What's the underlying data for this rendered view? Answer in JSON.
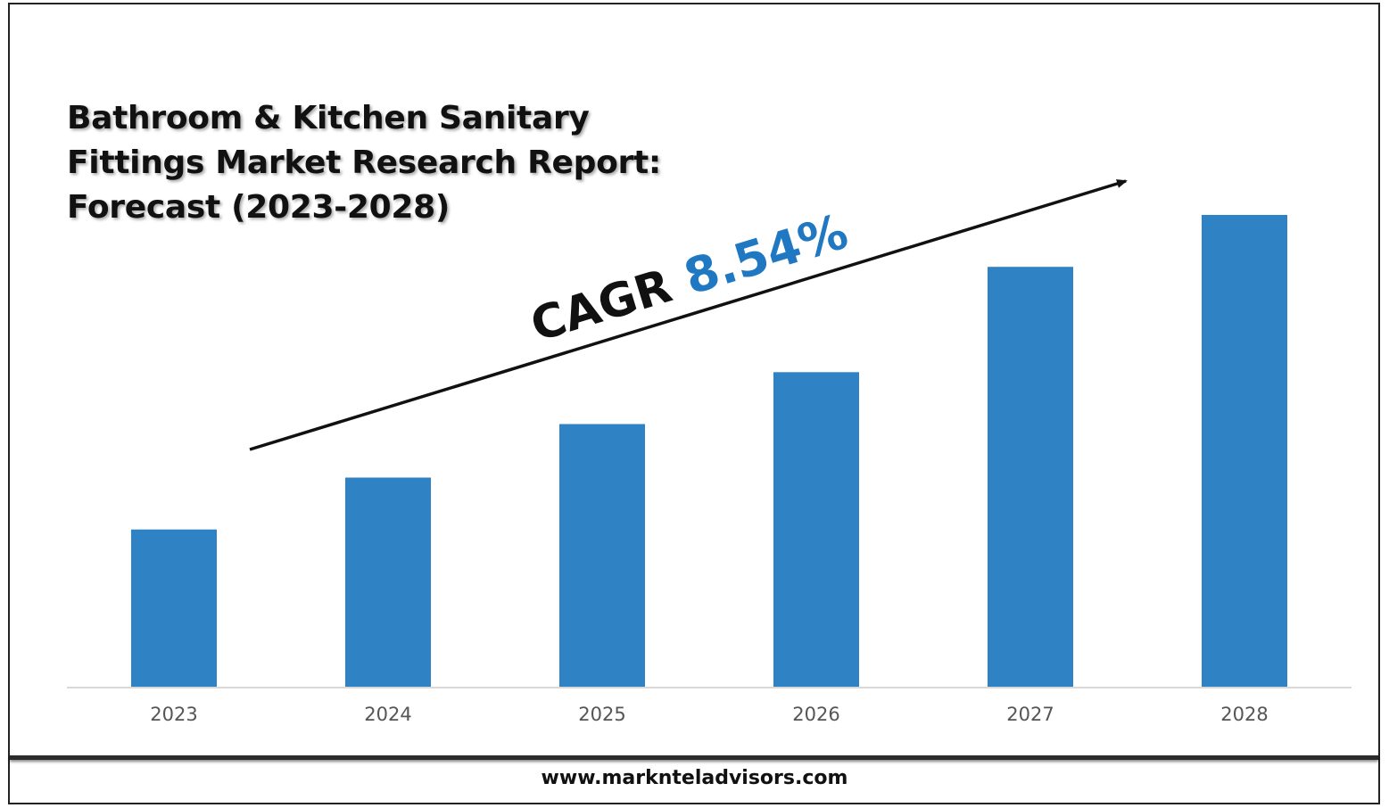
{
  "title_lines": [
    "Bathroom & Kitchen Sanitary",
    "Fittings Market Research Report:",
    "Forecast (2023-2028)"
  ],
  "cagr": {
    "label": "CAGR",
    "value": "8.54%",
    "value_color": "#1f78c1"
  },
  "footer": {
    "url": "www.marknteladvisors.com"
  },
  "colors": {
    "bar": "#2f83c4",
    "axis": "#d9d9d9",
    "text": "#111111"
  },
  "chart_data": {
    "type": "bar",
    "title": "Bathroom & Kitchen Sanitary Fittings Market Research Report: Forecast (2023-2028)",
    "categories": [
      "2023",
      "2024",
      "2025",
      "2026",
      "2027",
      "2028"
    ],
    "values": [
      1.0,
      1.33,
      1.67,
      2.0,
      2.67,
      3.0
    ],
    "ylim": [
      0,
      3.2
    ],
    "xlabel": "",
    "ylabel": "",
    "grid": false,
    "legend": "none",
    "annotations": [
      {
        "type": "trend-arrow",
        "text": "CAGR 8.54%"
      }
    ]
  }
}
